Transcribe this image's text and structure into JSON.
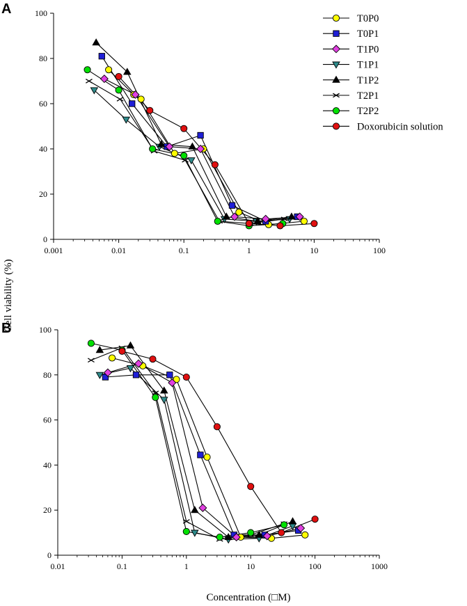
{
  "figure": {
    "ylabel": "Cell viability (%)",
    "xlabel": "Concentration (□M)"
  },
  "legend": {
    "position": "top-right",
    "entries": [
      {
        "name": "T0P0",
        "marker": "circle",
        "color": "#ffff00"
      },
      {
        "name": "T0P1",
        "marker": "square",
        "color": "#1f1fd6"
      },
      {
        "name": "T1P0",
        "marker": "diamond",
        "color": "#e040e0"
      },
      {
        "name": "T1P1",
        "marker": "triangle-down",
        "color": "#2e8b8b"
      },
      {
        "name": "T1P2",
        "marker": "triangle-up",
        "color": "#000000"
      },
      {
        "name": "T2P1",
        "marker": "x",
        "color": "#000000"
      },
      {
        "name": "T2P2",
        "marker": "circle",
        "color": "#00e000"
      },
      {
        "name": "Doxorubicin solution",
        "marker": "circle",
        "color": "#e01010"
      }
    ]
  },
  "chart_data": [
    {
      "panel": "A",
      "type": "line",
      "xscale": "log",
      "xlim": [
        0.001,
        100
      ],
      "ylim": [
        0,
        100
      ],
      "xticks": [
        0.001,
        0.01,
        0.1,
        1,
        10,
        100
      ],
      "xtick_labels": [
        "0.001",
        "0.01",
        "0.1",
        "1",
        "10",
        "100"
      ],
      "yticks": [
        0,
        20,
        40,
        60,
        80,
        100
      ],
      "ytick_labels": [
        "0",
        "20",
        "40",
        "60",
        "80",
        "100"
      ],
      "series": [
        {
          "name": "T0P0",
          "x": [
            0.007,
            0.017,
            0.022,
            0.072,
            0.2,
            0.7,
            2,
            7
          ],
          "y": [
            75,
            64,
            62,
            38,
            40,
            12,
            6.5,
            8
          ]
        },
        {
          "name": "T0P1",
          "x": [
            0.0055,
            0.016,
            0.055,
            0.18,
            0.55,
            1.8,
            5.5
          ],
          "y": [
            81,
            60,
            41,
            46,
            15,
            8,
            10
          ]
        },
        {
          "name": "T1P0",
          "x": [
            0.006,
            0.018,
            0.06,
            0.18,
            0.6,
            1.8,
            6
          ],
          "y": [
            71,
            64,
            41,
            40,
            10,
            9,
            10
          ]
        },
        {
          "name": "T1P1",
          "x": [
            0.0042,
            0.013,
            0.042,
            0.13,
            0.42,
            1.3,
            4.2
          ],
          "y": [
            66,
            53,
            41,
            35,
            9,
            8,
            9
          ]
        },
        {
          "name": "T1P2",
          "x": [
            0.0045,
            0.0135,
            0.045,
            0.135,
            0.45,
            1.35,
            4.5
          ],
          "y": [
            87,
            74,
            42,
            41,
            10,
            8,
            10
          ]
        },
        {
          "name": "T2P1",
          "x": [
            0.0035,
            0.0105,
            0.035,
            0.105,
            0.35,
            1.05,
            3.5
          ],
          "y": [
            70,
            62,
            39,
            35,
            8,
            7,
            9
          ]
        },
        {
          "name": "T2P2",
          "x": [
            0.0033,
            0.01,
            0.033,
            0.1,
            0.33,
            1.0,
            3.3
          ],
          "y": [
            75,
            66,
            40,
            37,
            8,
            6,
            7
          ]
        },
        {
          "name": "Doxorubicin solution",
          "x": [
            0.01,
            0.03,
            0.1,
            0.3,
            1,
            3,
            10
          ],
          "y": [
            72,
            57,
            49,
            33,
            7,
            6,
            7
          ]
        }
      ]
    },
    {
      "panel": "B",
      "type": "line",
      "xscale": "log",
      "xlim": [
        0.01,
        1000
      ],
      "ylim": [
        0,
        100
      ],
      "xticks": [
        0.01,
        0.1,
        1,
        10,
        100,
        1000
      ],
      "xtick_labels": [
        "0.01",
        "0.1",
        "1",
        "10",
        "100",
        "1000"
      ],
      "yticks": [
        0,
        20,
        40,
        60,
        80,
        100
      ],
      "ytick_labels": [
        "0",
        "20",
        "40",
        "60",
        "80",
        "100"
      ],
      "series": [
        {
          "name": "T0P0",
          "x": [
            0.07,
            0.21,
            0.7,
            2.1,
            7,
            21,
            70
          ],
          "y": [
            87.5,
            84,
            78,
            43.5,
            8,
            7.5,
            9
          ]
        },
        {
          "name": "T0P1",
          "x": [
            0.055,
            0.165,
            0.55,
            1.65,
            5.5,
            16.5,
            55
          ],
          "y": [
            79,
            80,
            80,
            44.5,
            9,
            9,
            11
          ]
        },
        {
          "name": "T1P0",
          "x": [
            0.06,
            0.18,
            0.6,
            1.8,
            6,
            18,
            60
          ],
          "y": [
            81,
            85,
            76.5,
            21,
            8,
            8.5,
            12
          ]
        },
        {
          "name": "T1P1",
          "x": [
            0.045,
            0.135,
            0.45,
            1.35,
            4.5,
            13.5,
            45
          ],
          "y": [
            80,
            83,
            69,
            10,
            7,
            7.5,
            13
          ]
        },
        {
          "name": "T1P2",
          "x": [
            0.045,
            0.135,
            0.45,
            1.35,
            4.5,
            13.5,
            45
          ],
          "y": [
            91,
            93,
            73,
            20,
            8,
            9,
            15
          ]
        },
        {
          "name": "T2P1",
          "x": [
            0.033,
            0.1,
            0.33,
            1.0,
            3.3,
            10,
            33
          ],
          "y": [
            86.5,
            92,
            72,
            15,
            7,
            9,
            14
          ]
        },
        {
          "name": "T2P2",
          "x": [
            0.033,
            0.1,
            0.33,
            1.0,
            3.3,
            10,
            33
          ],
          "y": [
            94,
            91,
            70,
            10.5,
            8,
            10,
            13.5
          ]
        },
        {
          "name": "Doxorubicin solution",
          "x": [
            0.1,
            0.3,
            1,
            3,
            10,
            30,
            100
          ],
          "y": [
            90.5,
            87,
            79,
            57,
            30.5,
            10,
            16
          ]
        }
      ]
    }
  ]
}
